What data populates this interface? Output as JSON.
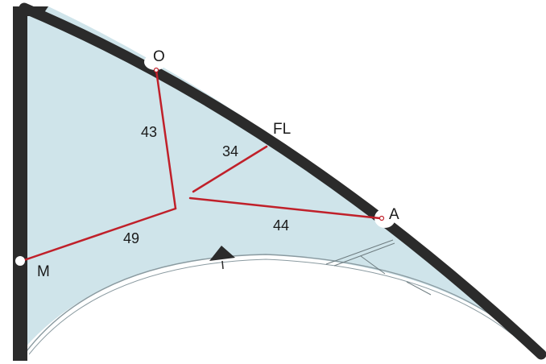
{
  "colors": {
    "sail_fill": "#cfe4ea",
    "frame": "#2b2b2b",
    "bridle": "#c0202a",
    "trailing_edge": "#8a9aa0",
    "label": "#1a1a1a"
  },
  "points": [
    {
      "id": "O",
      "label": "O"
    },
    {
      "id": "FL",
      "label": "FL"
    },
    {
      "id": "A",
      "label": "A"
    },
    {
      "id": "M",
      "label": "M"
    }
  ],
  "lengths": [
    {
      "id": "o-line",
      "value": "43"
    },
    {
      "id": "fl-line",
      "value": "34"
    },
    {
      "id": "a-line",
      "value": "44"
    },
    {
      "id": "m-line",
      "value": "49"
    }
  ]
}
